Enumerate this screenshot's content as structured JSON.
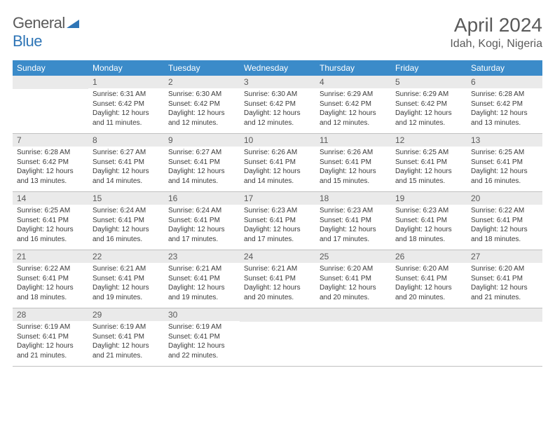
{
  "logo": {
    "part1": "General",
    "part2": "Blue"
  },
  "title": "April 2024",
  "location": "Idah, Kogi, Nigeria",
  "header_bg": "#3b8bc9",
  "header_text_color": "#ffffff",
  "daynum_bg": "#eaeaea",
  "text_color": "#3a3a3a",
  "title_color": "#5a5a5a",
  "day_names": [
    "Sunday",
    "Monday",
    "Tuesday",
    "Wednesday",
    "Thursday",
    "Friday",
    "Saturday"
  ],
  "weeks": [
    [
      {
        "n": "",
        "sr": "",
        "ss": "",
        "dl": ""
      },
      {
        "n": "1",
        "sr": "Sunrise: 6:31 AM",
        "ss": "Sunset: 6:42 PM",
        "dl": "Daylight: 12 hours and 11 minutes."
      },
      {
        "n": "2",
        "sr": "Sunrise: 6:30 AM",
        "ss": "Sunset: 6:42 PM",
        "dl": "Daylight: 12 hours and 12 minutes."
      },
      {
        "n": "3",
        "sr": "Sunrise: 6:30 AM",
        "ss": "Sunset: 6:42 PM",
        "dl": "Daylight: 12 hours and 12 minutes."
      },
      {
        "n": "4",
        "sr": "Sunrise: 6:29 AM",
        "ss": "Sunset: 6:42 PM",
        "dl": "Daylight: 12 hours and 12 minutes."
      },
      {
        "n": "5",
        "sr": "Sunrise: 6:29 AM",
        "ss": "Sunset: 6:42 PM",
        "dl": "Daylight: 12 hours and 12 minutes."
      },
      {
        "n": "6",
        "sr": "Sunrise: 6:28 AM",
        "ss": "Sunset: 6:42 PM",
        "dl": "Daylight: 12 hours and 13 minutes."
      }
    ],
    [
      {
        "n": "7",
        "sr": "Sunrise: 6:28 AM",
        "ss": "Sunset: 6:42 PM",
        "dl": "Daylight: 12 hours and 13 minutes."
      },
      {
        "n": "8",
        "sr": "Sunrise: 6:27 AM",
        "ss": "Sunset: 6:41 PM",
        "dl": "Daylight: 12 hours and 14 minutes."
      },
      {
        "n": "9",
        "sr": "Sunrise: 6:27 AM",
        "ss": "Sunset: 6:41 PM",
        "dl": "Daylight: 12 hours and 14 minutes."
      },
      {
        "n": "10",
        "sr": "Sunrise: 6:26 AM",
        "ss": "Sunset: 6:41 PM",
        "dl": "Daylight: 12 hours and 14 minutes."
      },
      {
        "n": "11",
        "sr": "Sunrise: 6:26 AM",
        "ss": "Sunset: 6:41 PM",
        "dl": "Daylight: 12 hours and 15 minutes."
      },
      {
        "n": "12",
        "sr": "Sunrise: 6:25 AM",
        "ss": "Sunset: 6:41 PM",
        "dl": "Daylight: 12 hours and 15 minutes."
      },
      {
        "n": "13",
        "sr": "Sunrise: 6:25 AM",
        "ss": "Sunset: 6:41 PM",
        "dl": "Daylight: 12 hours and 16 minutes."
      }
    ],
    [
      {
        "n": "14",
        "sr": "Sunrise: 6:25 AM",
        "ss": "Sunset: 6:41 PM",
        "dl": "Daylight: 12 hours and 16 minutes."
      },
      {
        "n": "15",
        "sr": "Sunrise: 6:24 AM",
        "ss": "Sunset: 6:41 PM",
        "dl": "Daylight: 12 hours and 16 minutes."
      },
      {
        "n": "16",
        "sr": "Sunrise: 6:24 AM",
        "ss": "Sunset: 6:41 PM",
        "dl": "Daylight: 12 hours and 17 minutes."
      },
      {
        "n": "17",
        "sr": "Sunrise: 6:23 AM",
        "ss": "Sunset: 6:41 PM",
        "dl": "Daylight: 12 hours and 17 minutes."
      },
      {
        "n": "18",
        "sr": "Sunrise: 6:23 AM",
        "ss": "Sunset: 6:41 PM",
        "dl": "Daylight: 12 hours and 17 minutes."
      },
      {
        "n": "19",
        "sr": "Sunrise: 6:23 AM",
        "ss": "Sunset: 6:41 PM",
        "dl": "Daylight: 12 hours and 18 minutes."
      },
      {
        "n": "20",
        "sr": "Sunrise: 6:22 AM",
        "ss": "Sunset: 6:41 PM",
        "dl": "Daylight: 12 hours and 18 minutes."
      }
    ],
    [
      {
        "n": "21",
        "sr": "Sunrise: 6:22 AM",
        "ss": "Sunset: 6:41 PM",
        "dl": "Daylight: 12 hours and 18 minutes."
      },
      {
        "n": "22",
        "sr": "Sunrise: 6:21 AM",
        "ss": "Sunset: 6:41 PM",
        "dl": "Daylight: 12 hours and 19 minutes."
      },
      {
        "n": "23",
        "sr": "Sunrise: 6:21 AM",
        "ss": "Sunset: 6:41 PM",
        "dl": "Daylight: 12 hours and 19 minutes."
      },
      {
        "n": "24",
        "sr": "Sunrise: 6:21 AM",
        "ss": "Sunset: 6:41 PM",
        "dl": "Daylight: 12 hours and 20 minutes."
      },
      {
        "n": "25",
        "sr": "Sunrise: 6:20 AM",
        "ss": "Sunset: 6:41 PM",
        "dl": "Daylight: 12 hours and 20 minutes."
      },
      {
        "n": "26",
        "sr": "Sunrise: 6:20 AM",
        "ss": "Sunset: 6:41 PM",
        "dl": "Daylight: 12 hours and 20 minutes."
      },
      {
        "n": "27",
        "sr": "Sunrise: 6:20 AM",
        "ss": "Sunset: 6:41 PM",
        "dl": "Daylight: 12 hours and 21 minutes."
      }
    ],
    [
      {
        "n": "28",
        "sr": "Sunrise: 6:19 AM",
        "ss": "Sunset: 6:41 PM",
        "dl": "Daylight: 12 hours and 21 minutes."
      },
      {
        "n": "29",
        "sr": "Sunrise: 6:19 AM",
        "ss": "Sunset: 6:41 PM",
        "dl": "Daylight: 12 hours and 21 minutes."
      },
      {
        "n": "30",
        "sr": "Sunrise: 6:19 AM",
        "ss": "Sunset: 6:41 PM",
        "dl": "Daylight: 12 hours and 22 minutes."
      },
      {
        "n": "",
        "sr": "",
        "ss": "",
        "dl": ""
      },
      {
        "n": "",
        "sr": "",
        "ss": "",
        "dl": ""
      },
      {
        "n": "",
        "sr": "",
        "ss": "",
        "dl": ""
      },
      {
        "n": "",
        "sr": "",
        "ss": "",
        "dl": ""
      }
    ]
  ]
}
